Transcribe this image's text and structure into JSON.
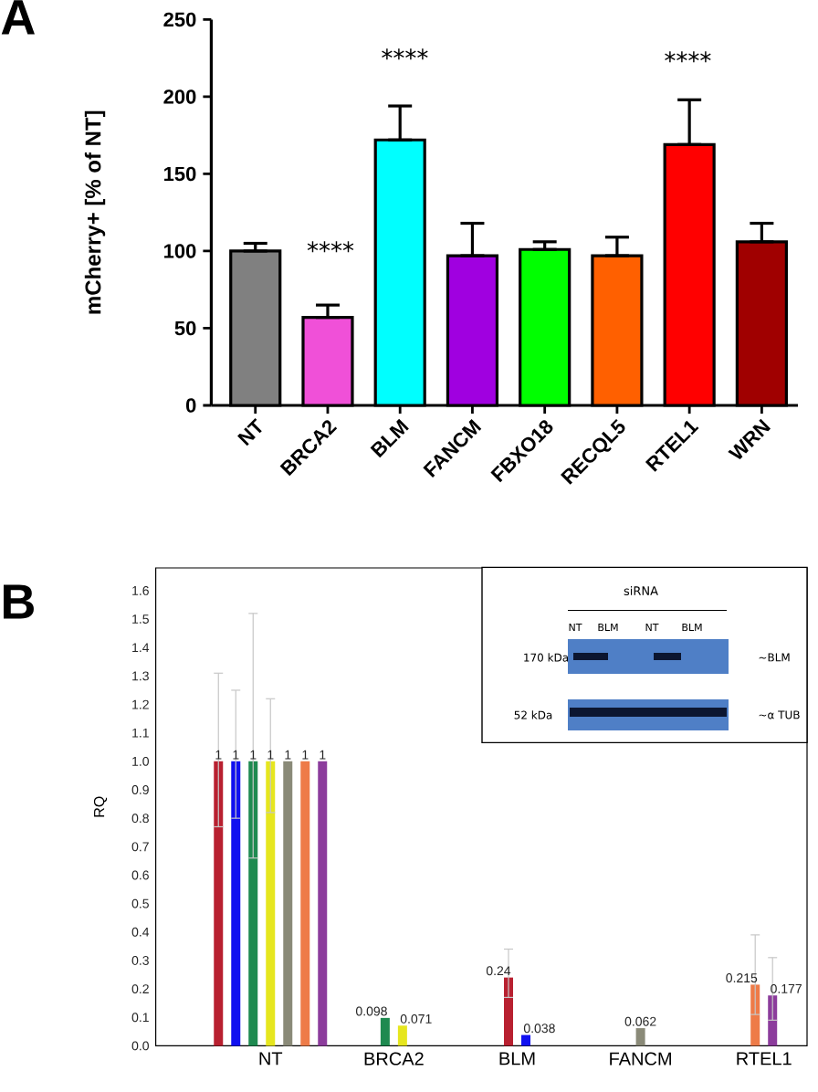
{
  "chart_data": [
    {
      "type": "bar",
      "title": "A",
      "ylabel": "mCherry+ [% of NT]",
      "categories": [
        "NT",
        "BRCA2",
        "BLM",
        "FANCM",
        "FBXO18",
        "RECQL5",
        "RTEL1",
        "WRN"
      ],
      "values": [
        100,
        57,
        172,
        97,
        101,
        97,
        169,
        106
      ],
      "colors": [
        "#808080",
        "#f050d8",
        "#00ffff",
        "#a000e0",
        "#00ff00",
        "#ff6000",
        "#ff0000",
        "#a00000"
      ],
      "errors": [
        [
          100,
          105
        ],
        [
          57,
          65
        ],
        [
          172,
          194
        ],
        [
          97,
          118
        ],
        [
          101,
          106
        ],
        [
          97,
          109
        ],
        [
          169,
          198
        ],
        [
          106,
          118
        ]
      ],
      "ylim": [
        0,
        250
      ],
      "yticks": [
        0,
        50,
        100,
        150,
        200,
        250
      ],
      "annotations": [
        "****",
        "****",
        "****"
      ]
    },
    {
      "type": "bar",
      "title": "B",
      "ylabel": "RQ",
      "categories": [
        "NT",
        "BRCA2",
        "BLM",
        "FANCM",
        "RTEL1"
      ],
      "series": [
        {
          "color": "#b82030",
          "values": [
            1,
            null,
            0.24,
            null,
            null
          ],
          "errors": [
            [
              0.77,
              1.31
            ],
            null,
            [
              0.17,
              0.34
            ],
            null,
            null
          ]
        },
        {
          "color": "#1010f0",
          "values": [
            1,
            null,
            0.038,
            null,
            null
          ],
          "errors": [
            [
              0.8,
              1.25
            ],
            null,
            null,
            null,
            null
          ]
        },
        {
          "color": "#1e8a50",
          "values": [
            1,
            0.098,
            null,
            null,
            null
          ],
          "errors": [
            [
              0.66,
              1.52
            ],
            null,
            null,
            null,
            null
          ]
        },
        {
          "color": "#e6e61e",
          "values": [
            1,
            0.071,
            null,
            null,
            null
          ],
          "errors": [
            [
              0.82,
              1.22
            ],
            null,
            null,
            null,
            null
          ]
        },
        {
          "color": "#8a8a78",
          "values": [
            1,
            null,
            null,
            0.062,
            null
          ]
        },
        {
          "color": "#ee7b48",
          "values": [
            1,
            null,
            null,
            null,
            0.215
          ],
          "errors": [
            null,
            null,
            null,
            null,
            [
              0.11,
              0.39
            ]
          ]
        },
        {
          "color": "#8c3c9c",
          "values": [
            1,
            null,
            null,
            null,
            0.177
          ],
          "errors": [
            null,
            null,
            null,
            null,
            [
              0.09,
              0.31
            ]
          ]
        }
      ],
      "ylim": [
        0,
        1.68
      ],
      "yticks": [
        {
          "value": 0,
          "label": "0.0"
        },
        0.1,
        0.2,
        0.3,
        0.4,
        0.5,
        0.6,
        0.7,
        0.8,
        0.9,
        {
          "value": 1,
          "label": "1.0"
        },
        1.1,
        1.2,
        1.3,
        1.4,
        1.5,
        1.6
      ],
      "data_labels": true,
      "annotations": [
        "siRNA",
        "NT",
        "BLM",
        "NT",
        "BLM",
        "170 kDa",
        "~BLM",
        "52 kDa",
        "~α TUB"
      ]
    }
  ]
}
